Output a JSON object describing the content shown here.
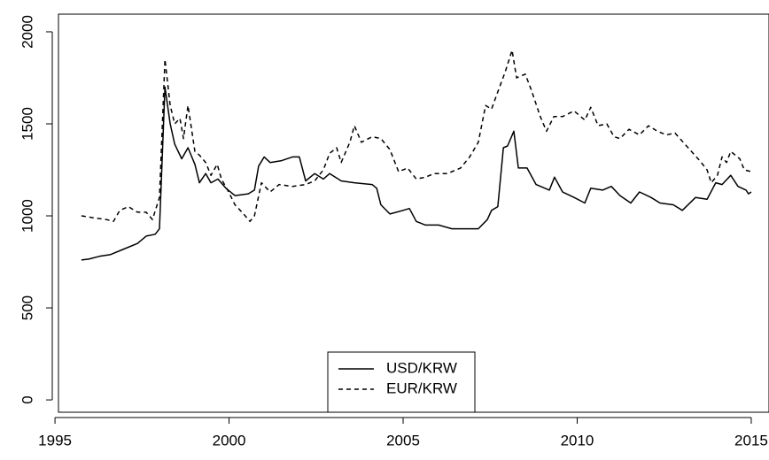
{
  "chart_data": {
    "type": "line",
    "xlim": [
      1995.1,
      2015.51
    ],
    "ylim": [
      -67,
      2096
    ],
    "xticks": [
      1995,
      2000,
      2005,
      2010,
      2015
    ],
    "yticks": [
      0,
      500,
      1000,
      1500,
      2000
    ],
    "legend": "bottom",
    "series": [
      {
        "name": "USD/KRW",
        "color": "#000000",
        "linestyle": "solid",
        "x": [
          1995.76,
          1995.97,
          1996.27,
          1996.6,
          1996.98,
          1997.37,
          1997.62,
          1997.88,
          1998.0,
          1998.16,
          1998.31,
          1998.44,
          1998.64,
          1998.82,
          1999.02,
          1999.15,
          1999.33,
          1999.48,
          1999.68,
          1999.91,
          2000.17,
          2000.55,
          2000.73,
          2000.85,
          2001.01,
          2001.18,
          2001.51,
          2001.82,
          2002.02,
          2002.2,
          2002.46,
          2002.71,
          2002.89,
          2003.22,
          2003.6,
          2004.11,
          2004.24,
          2004.36,
          2004.62,
          2005.0,
          2005.18,
          2005.38,
          2005.64,
          2006.02,
          2006.4,
          2006.78,
          2007.16,
          2007.42,
          2007.54,
          2007.72,
          2007.88,
          2008.0,
          2008.18,
          2008.31,
          2008.56,
          2008.82,
          2009.2,
          2009.35,
          2009.58,
          2009.91,
          2010.22,
          2010.39,
          2010.73,
          2010.98,
          2011.23,
          2011.54,
          2011.79,
          2012.12,
          2012.38,
          2012.76,
          2013.02,
          2013.4,
          2013.73,
          2013.98,
          2014.16,
          2014.41,
          2014.62,
          2014.85,
          2014.92,
          2015.0
        ],
        "values": [
          760,
          765,
          780,
          790,
          820,
          850,
          890,
          900,
          930,
          1700,
          1500,
          1390,
          1310,
          1370,
          1280,
          1180,
          1230,
          1180,
          1200,
          1150,
          1110,
          1120,
          1140,
          1270,
          1320,
          1290,
          1300,
          1320,
          1320,
          1190,
          1230,
          1200,
          1230,
          1190,
          1180,
          1170,
          1150,
          1060,
          1010,
          1030,
          1040,
          970,
          950,
          950,
          930,
          930,
          930,
          980,
          1030,
          1050,
          1370,
          1380,
          1460,
          1260,
          1260,
          1170,
          1140,
          1210,
          1130,
          1100,
          1070,
          1150,
          1140,
          1160,
          1110,
          1070,
          1130,
          1100,
          1070,
          1060,
          1030,
          1100,
          1090,
          1180,
          1170,
          1220,
          1160,
          1140,
          1120,
          1130
        ]
      },
      {
        "name": "EUR/KRW",
        "color": "#000000",
        "linestyle": "dashed",
        "x": [
          1995.76,
          1996.09,
          1996.48,
          1996.68,
          1996.86,
          1997.11,
          1997.37,
          1997.62,
          1997.8,
          1998.0,
          1998.16,
          1998.31,
          1998.44,
          1998.59,
          1998.69,
          1998.82,
          1999.02,
          1999.15,
          1999.33,
          1999.48,
          1999.66,
          1999.78,
          1999.99,
          2000.17,
          2000.42,
          2000.6,
          2000.73,
          2000.93,
          2001.18,
          2001.44,
          2001.82,
          2002.2,
          2002.46,
          2002.71,
          2002.89,
          2003.09,
          2003.22,
          2003.47,
          2003.6,
          2003.8,
          2004.11,
          2004.36,
          2004.62,
          2004.87,
          2005.13,
          2005.38,
          2005.64,
          2005.89,
          2006.27,
          2006.65,
          2006.91,
          2007.16,
          2007.37,
          2007.54,
          2007.75,
          2007.93,
          2008.13,
          2008.26,
          2008.51,
          2008.69,
          2008.94,
          2009.12,
          2009.33,
          2009.58,
          2009.91,
          2010.22,
          2010.39,
          2010.6,
          2010.85,
          2011.06,
          2011.23,
          2011.49,
          2011.79,
          2012.05,
          2012.3,
          2012.56,
          2012.81,
          2013.14,
          2013.52,
          2013.73,
          2013.85,
          2014.03,
          2014.16,
          2014.29,
          2014.41,
          2014.67,
          2014.8,
          2015.0
        ],
        "values": [
          1000,
          990,
          980,
          970,
          1030,
          1050,
          1020,
          1020,
          980,
          1100,
          1850,
          1600,
          1500,
          1530,
          1420,
          1600,
          1350,
          1330,
          1290,
          1220,
          1280,
          1200,
          1130,
          1060,
          1010,
          970,
          1000,
          1180,
          1130,
          1170,
          1160,
          1170,
          1190,
          1250,
          1340,
          1370,
          1290,
          1400,
          1490,
          1400,
          1430,
          1420,
          1360,
          1240,
          1260,
          1200,
          1210,
          1230,
          1230,
          1260,
          1320,
          1400,
          1600,
          1580,
          1690,
          1780,
          1900,
          1750,
          1770,
          1680,
          1540,
          1460,
          1540,
          1540,
          1570,
          1520,
          1590,
          1490,
          1500,
          1430,
          1420,
          1470,
          1440,
          1490,
          1460,
          1440,
          1450,
          1380,
          1300,
          1250,
          1180,
          1220,
          1320,
          1290,
          1350,
          1310,
          1250,
          1240
        ]
      }
    ]
  }
}
